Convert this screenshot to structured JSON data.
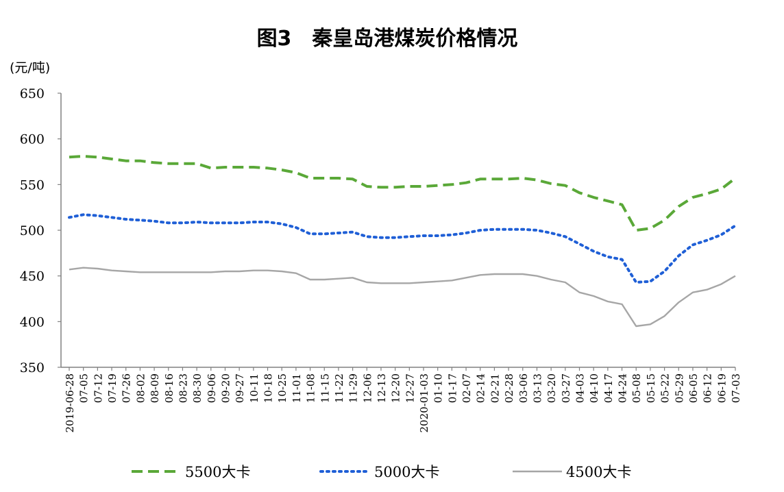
{
  "chart_data": {
    "type": "line",
    "title": "图3　秦皇岛港煤炭价格情况",
    "unit_label": "(元/吨)",
    "ylim": [
      350,
      650
    ],
    "yticks": [
      350,
      400,
      450,
      500,
      550,
      600,
      650
    ],
    "grid": false,
    "legend_position": "bottom",
    "x": [
      "2019-06-28",
      "07-05",
      "07-12",
      "07-19",
      "07-26",
      "08-02",
      "08-09",
      "08-16",
      "08-23",
      "08-30",
      "09-06",
      "09-20",
      "09-27",
      "10-11",
      "10-18",
      "10-25",
      "11-01",
      "11-08",
      "11-15",
      "11-22",
      "11-29",
      "12-06",
      "12-13",
      "12-20",
      "12-27",
      "2020-01-03",
      "01-10",
      "01-17",
      "02-07",
      "02-14",
      "02-21",
      "02-28",
      "03-06",
      "03-13",
      "03-20",
      "03-27",
      "04-03",
      "04-10",
      "04-17",
      "04-24",
      "05-08",
      "05-15",
      "05-22",
      "05-29",
      "06-05",
      "06-12",
      "06-19",
      "07-03"
    ],
    "series": [
      {
        "name": "5500大卡",
        "color": "#5aa838",
        "dash": "dashed",
        "values": [
          580,
          581,
          580,
          578,
          576,
          576,
          574,
          573,
          573,
          573,
          568,
          569,
          569,
          569,
          568,
          566,
          563,
          557,
          557,
          557,
          556,
          548,
          547,
          547,
          548,
          548,
          549,
          550,
          552,
          556,
          556,
          556,
          557,
          555,
          551,
          549,
          541,
          536,
          532,
          528,
          500,
          502,
          511,
          526,
          536,
          540,
          545,
          557
        ]
      },
      {
        "name": "5000大卡",
        "color": "#1f5fd6",
        "dash": "dotted",
        "values": [
          514,
          517,
          516,
          514,
          512,
          511,
          510,
          508,
          508,
          509,
          508,
          508,
          508,
          509,
          509,
          507,
          503,
          496,
          496,
          497,
          498,
          493,
          492,
          492,
          493,
          494,
          494,
          495,
          497,
          500,
          501,
          501,
          501,
          500,
          497,
          493,
          485,
          477,
          471,
          468,
          443,
          444,
          455,
          472,
          484,
          489,
          495,
          505
        ]
      },
      {
        "name": "4500大卡",
        "color": "#a6a6a6",
        "dash": "solid",
        "values": [
          457,
          459,
          458,
          456,
          455,
          454,
          454,
          454,
          454,
          454,
          454,
          455,
          455,
          456,
          456,
          455,
          453,
          446,
          446,
          447,
          448,
          443,
          442,
          442,
          442,
          443,
          444,
          445,
          448,
          451,
          452,
          452,
          452,
          450,
          446,
          443,
          432,
          428,
          422,
          419,
          395,
          397,
          406,
          421,
          432,
          435,
          441,
          450
        ]
      }
    ]
  }
}
